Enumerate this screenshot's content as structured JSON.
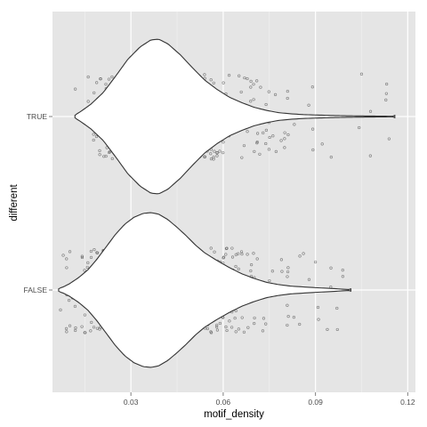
{
  "chart_data": {
    "type": "violin",
    "xlabel": "motif_density",
    "ylabel": "different",
    "xlim": [
      0.0045,
      0.1225
    ],
    "x_ticks": [
      0.03,
      0.06,
      0.09,
      0.12
    ],
    "x_tick_labels": [
      "0.03",
      "0.06",
      "0.09",
      "0.12"
    ],
    "categories": [
      "TRUE",
      "FALSE"
    ],
    "grid": true,
    "legend": "none",
    "violins": [
      {
        "category": "TRUE",
        "min": 0.0118,
        "max": 0.1158,
        "density_profile": [
          [
            0.0118,
            0.02
          ],
          [
            0.0135,
            0.06
          ],
          [
            0.017,
            0.16
          ],
          [
            0.021,
            0.31
          ],
          [
            0.025,
            0.52
          ],
          [
            0.029,
            0.74
          ],
          [
            0.033,
            0.9
          ],
          [
            0.0365,
            0.99
          ],
          [
            0.039,
            1.0
          ],
          [
            0.042,
            0.94
          ],
          [
            0.046,
            0.8
          ],
          [
            0.05,
            0.63
          ],
          [
            0.054,
            0.47
          ],
          [
            0.058,
            0.35
          ],
          [
            0.062,
            0.25
          ],
          [
            0.066,
            0.18
          ],
          [
            0.07,
            0.12
          ],
          [
            0.074,
            0.08
          ],
          [
            0.078,
            0.05
          ],
          [
            0.082,
            0.035
          ],
          [
            0.086,
            0.025
          ],
          [
            0.09,
            0.02
          ],
          [
            0.095,
            0.014
          ],
          [
            0.1,
            0.01
          ],
          [
            0.106,
            0.007
          ],
          [
            0.112,
            0.005
          ],
          [
            0.1158,
            0.003
          ]
        ]
      },
      {
        "category": "FALSE",
        "min": 0.0065,
        "max": 0.1015,
        "density_profile": [
          [
            0.0065,
            0.02
          ],
          [
            0.008,
            0.04
          ],
          [
            0.01,
            0.08
          ],
          [
            0.013,
            0.16
          ],
          [
            0.016,
            0.26
          ],
          [
            0.019,
            0.4
          ],
          [
            0.022,
            0.56
          ],
          [
            0.025,
            0.72
          ],
          [
            0.028,
            0.85
          ],
          [
            0.031,
            0.94
          ],
          [
            0.034,
            0.99
          ],
          [
            0.0365,
            1.0
          ],
          [
            0.039,
            0.98
          ],
          [
            0.042,
            0.91
          ],
          [
            0.045,
            0.81
          ],
          [
            0.048,
            0.7
          ],
          [
            0.051,
            0.58
          ],
          [
            0.054,
            0.48
          ],
          [
            0.058,
            0.38
          ],
          [
            0.062,
            0.29
          ],
          [
            0.066,
            0.21
          ],
          [
            0.07,
            0.15
          ],
          [
            0.074,
            0.1
          ],
          [
            0.078,
            0.07
          ],
          [
            0.082,
            0.05
          ],
          [
            0.086,
            0.04
          ],
          [
            0.09,
            0.03
          ],
          [
            0.095,
            0.02
          ],
          [
            0.1015,
            0.005
          ]
        ]
      }
    ],
    "jitter_points": [
      {
        "category": "TRUE",
        "count": 520
      },
      {
        "category": "FALSE",
        "count": 900
      }
    ],
    "colors": {
      "panel_background": "#e5e5e5",
      "grid_major": "#ffffff",
      "grid_minor": "#f2f2f2",
      "violin_fill": "#ffffff",
      "violin_outline": "#333333",
      "points": "#555555",
      "tick_label": "#4d4d4d",
      "axis_title": "#000000"
    }
  }
}
